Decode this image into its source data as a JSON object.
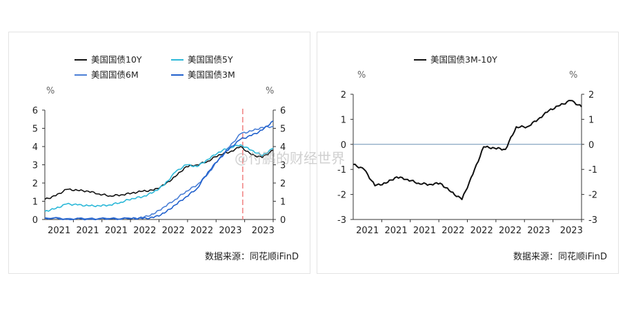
{
  "watermark": "@付鹏的财经世界",
  "chart_data": [
    {
      "type": "line",
      "legend": [
        "美国国债10Y",
        "美国国债5Y",
        "美国国债6M",
        "美国国债3M"
      ],
      "colors": {
        "10Y": "#111111",
        "5Y": "#2bb8d8",
        "6M": "#4a7fd6",
        "3M": "#1f5fcc",
        "marker": "#f08080"
      },
      "unit_left": "%",
      "unit_right": "%",
      "xtick_labels": [
        "2021",
        "2021",
        "2021",
        "2022",
        "2022",
        "2022",
        "2023",
        "2023"
      ],
      "ytick_labels": [
        "0",
        "1",
        "2",
        "3",
        "4",
        "5",
        "6"
      ],
      "ylim": [
        0,
        6
      ],
      "marker_line": "2022-09",
      "source": "数据来源：同花顺iFinD",
      "series": [
        {
          "name": "美国国债10Y",
          "x": [
            2021.0,
            2021.1,
            2021.2,
            2021.3,
            2021.4,
            2021.5,
            2021.6,
            2021.7,
            2021.8,
            2021.9,
            2022.0,
            2022.1,
            2022.2,
            2022.3,
            2022.4,
            2022.5,
            2022.6,
            2022.7,
            2022.8,
            2022.9,
            2023.0,
            2023.1
          ],
          "y": [
            1.1,
            1.3,
            1.65,
            1.6,
            1.55,
            1.4,
            1.3,
            1.35,
            1.45,
            1.55,
            1.6,
            1.9,
            2.35,
            2.9,
            3.0,
            3.2,
            3.55,
            3.7,
            4.0,
            3.55,
            3.4,
            3.8
          ]
        },
        {
          "name": "美国国债5Y",
          "x": [
            2021.0,
            2021.1,
            2021.2,
            2021.3,
            2021.4,
            2021.5,
            2021.6,
            2021.7,
            2021.8,
            2021.9,
            2022.0,
            2022.1,
            2022.2,
            2022.3,
            2022.4,
            2022.5,
            2022.6,
            2022.7,
            2022.8,
            2022.9,
            2023.0,
            2023.1
          ],
          "y": [
            0.45,
            0.6,
            0.85,
            0.8,
            0.75,
            0.75,
            0.8,
            0.95,
            1.15,
            1.25,
            1.5,
            1.9,
            2.6,
            3.0,
            2.9,
            3.3,
            3.7,
            3.95,
            4.1,
            3.8,
            3.5,
            3.9
          ]
        },
        {
          "name": "美国国债6M",
          "x": [
            2021.0,
            2021.2,
            2021.4,
            2021.6,
            2021.8,
            2021.9,
            2022.0,
            2022.1,
            2022.2,
            2022.3,
            2022.4,
            2022.5,
            2022.6,
            2022.7,
            2022.8,
            2022.9,
            2023.0,
            2023.1
          ],
          "y": [
            0.1,
            0.05,
            0.05,
            0.05,
            0.05,
            0.1,
            0.3,
            0.7,
            1.1,
            1.55,
            1.9,
            2.5,
            3.3,
            4.0,
            4.7,
            4.85,
            5.05,
            5.1
          ]
        },
        {
          "name": "美国国债3M",
          "x": [
            2021.0,
            2021.2,
            2021.4,
            2021.6,
            2021.8,
            2021.9,
            2022.0,
            2022.1,
            2022.2,
            2022.3,
            2022.4,
            2022.5,
            2022.6,
            2022.7,
            2022.8,
            2022.9,
            2023.0,
            2023.1
          ],
          "y": [
            0.08,
            0.03,
            0.03,
            0.04,
            0.05,
            0.05,
            0.1,
            0.35,
            0.8,
            1.25,
            1.7,
            2.6,
            3.3,
            3.9,
            4.4,
            4.6,
            4.9,
            5.4
          ]
        }
      ]
    },
    {
      "type": "line",
      "legend": [
        "美国国债3M-10Y"
      ],
      "colors": {
        "spread": "#111111",
        "zero": "#6a8fb3"
      },
      "unit_left": "%",
      "unit_right": "%",
      "xtick_labels": [
        "2021",
        "2021",
        "2021",
        "2022",
        "2022",
        "2022",
        "2023",
        "2023"
      ],
      "ytick_labels": [
        "-3",
        "-2",
        "-1",
        "0",
        "1",
        "2"
      ],
      "ylim": [
        -3,
        2
      ],
      "source": "数据来源：同花顺iFinD",
      "series": [
        {
          "name": "美国国债3M-10Y",
          "x": [
            2021.0,
            2021.1,
            2021.2,
            2021.3,
            2021.4,
            2021.5,
            2021.6,
            2021.7,
            2021.8,
            2021.9,
            2022.0,
            2022.1,
            2022.2,
            2022.3,
            2022.4,
            2022.5,
            2022.6,
            2022.7,
            2022.8,
            2022.9,
            2023.0,
            2023.1
          ],
          "y": [
            -0.8,
            -1.0,
            -1.65,
            -1.55,
            -1.3,
            -1.4,
            -1.55,
            -1.6,
            -1.55,
            -1.9,
            -2.2,
            -1.2,
            -0.1,
            -0.15,
            -0.2,
            0.7,
            0.7,
            1.0,
            1.35,
            1.55,
            1.75,
            1.5
          ]
        }
      ]
    }
  ]
}
